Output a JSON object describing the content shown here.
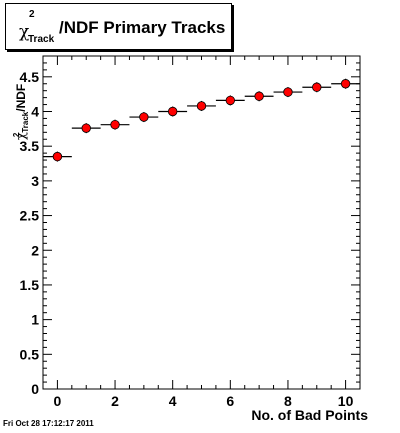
{
  "title": {
    "main": "/NDF Primary Tracks",
    "symbol": "χ",
    "superscript": "2",
    "subscript": "Track"
  },
  "axes": {
    "xlabel": "No. of Bad Points",
    "ylabel": {
      "symbol": "χ",
      "superscript": "2",
      "subscript": "Track",
      "text": "/NDF"
    }
  },
  "timestamp": "Fri Oct 28 17:12:17 2011",
  "colors": {
    "marker": "#ff0000",
    "axis": "#000000",
    "background": "#ffffff"
  },
  "chart_data": {
    "type": "scatter",
    "x": [
      0,
      1,
      2,
      3,
      4,
      5,
      6,
      7,
      8,
      9,
      10
    ],
    "values": [
      3.35,
      3.76,
      3.81,
      3.92,
      4.0,
      4.08,
      4.16,
      4.22,
      4.28,
      4.35,
      4.4
    ],
    "xlim": [
      -0.5,
      10.5
    ],
    "ylim": [
      0,
      4.8
    ],
    "xticks": [
      0,
      2,
      4,
      6,
      8,
      10
    ],
    "yticks": [
      0,
      0.5,
      1,
      1.5,
      2,
      2.5,
      3,
      3.5,
      4,
      4.5
    ],
    "ytick_labels": [
      "0",
      "0.5",
      "1",
      "1.5",
      "2",
      "2.5",
      "3",
      "3.5",
      "4",
      "4.5"
    ],
    "xtick_labels": [
      "0",
      "2",
      "4",
      "6",
      "8",
      "10"
    ],
    "grid": false
  }
}
